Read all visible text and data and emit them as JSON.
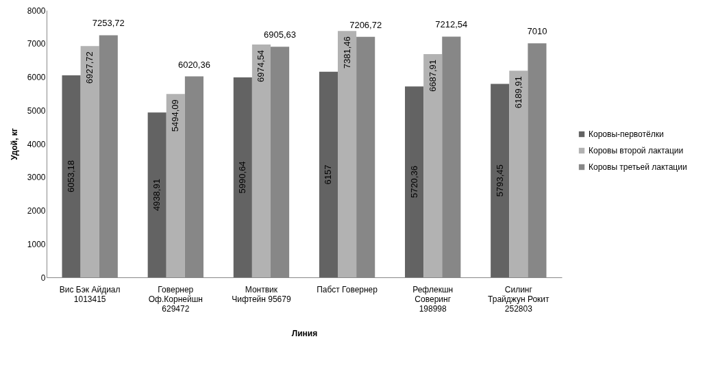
{
  "chart_data": {
    "type": "bar",
    "xlabel": "Линия",
    "ylabel": "Удой, кг",
    "categories": [
      "Вис Бэк Айдиал 1013415",
      "Говернер Оф.Корнейшн 629472",
      "Монтвик Чифтейн 95679",
      "Пабст Говернер",
      "Рефлекшн Соверинг 198998",
      "Силинг Трайджун Рокит 252803"
    ],
    "series": [
      {
        "name": "Коровы-первотёлки",
        "color": "#636363",
        "values": [
          6053.18,
          4938.91,
          5990.64,
          6157,
          5720.36,
          5793.45
        ],
        "value_labels": [
          "6053,18",
          "4938,91",
          "5990,64",
          "6157",
          "5720,36",
          "5793,45"
        ]
      },
      {
        "name": "Коровы второй лактации",
        "color": "#b2b2b2",
        "values": [
          6927.72,
          5494.09,
          6974.54,
          7381.46,
          6687.91,
          6189.91
        ],
        "value_labels": [
          "6927,72",
          "5494,09",
          "6974,54",
          "7381,46",
          "6687,91",
          "6189,91"
        ]
      },
      {
        "name": "Коровы третьей лактации",
        "color": "#878787",
        "values": [
          7253.72,
          6020.36,
          6905.63,
          7206.72,
          7212.54,
          7010
        ],
        "value_labels": [
          "7253,72",
          "6020,36",
          "6905,63",
          "7206,72",
          "7212,54",
          "7010"
        ]
      }
    ],
    "ylim": [
      0,
      8000
    ],
    "yticks": [
      0,
      1000,
      2000,
      3000,
      4000,
      5000,
      6000,
      7000,
      8000
    ],
    "grid": false,
    "legend": "right"
  }
}
